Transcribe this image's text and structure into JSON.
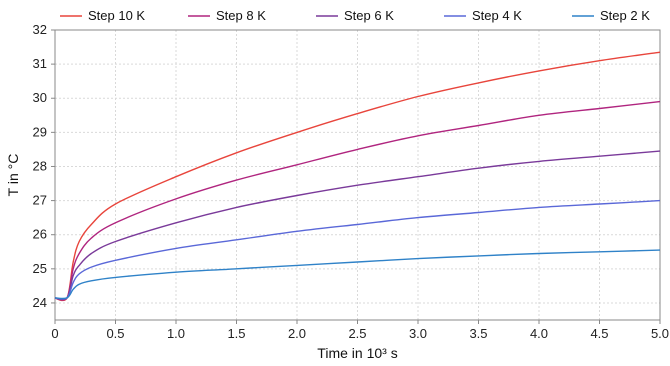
{
  "chart_data": {
    "type": "line",
    "title": "",
    "xlabel": "Time in 10³ s",
    "ylabel": "T in °C",
    "xlim": [
      0,
      5.0
    ],
    "ylim": [
      23.5,
      32
    ],
    "xticks": [
      "0",
      "0.5",
      "1.0",
      "1.5",
      "2.0",
      "2.5",
      "3.0",
      "3.5",
      "4.0",
      "4.5",
      "5.0"
    ],
    "yticks": [
      "24",
      "25",
      "26",
      "27",
      "28",
      "29",
      "30",
      "31",
      "32"
    ],
    "grid": true,
    "legend_position": "top",
    "x": [
      0,
      0.1,
      0.15,
      0.2,
      0.3,
      0.5,
      1.0,
      1.5,
      2.0,
      2.5,
      3.0,
      3.5,
      4.0,
      4.5,
      5.0
    ],
    "series": [
      {
        "name": "Step 10 K",
        "color": "#e8453c",
        "values": [
          24.15,
          24.15,
          25.2,
          25.8,
          26.3,
          26.9,
          27.7,
          28.4,
          29.0,
          29.55,
          30.05,
          30.45,
          30.8,
          31.1,
          31.35
        ]
      },
      {
        "name": "Step 8 K",
        "color": "#b0257f",
        "values": [
          24.15,
          24.15,
          25.0,
          25.45,
          25.9,
          26.35,
          27.05,
          27.6,
          28.05,
          28.5,
          28.9,
          29.2,
          29.5,
          29.7,
          29.9
        ]
      },
      {
        "name": "Step 6 K",
        "color": "#7a3a9a",
        "values": [
          24.15,
          24.15,
          24.8,
          25.1,
          25.45,
          25.8,
          26.35,
          26.8,
          27.15,
          27.45,
          27.7,
          27.95,
          28.15,
          28.3,
          28.45
        ]
      },
      {
        "name": "Step 4 K",
        "color": "#5a68d8",
        "values": [
          24.15,
          24.15,
          24.6,
          24.85,
          25.05,
          25.25,
          25.6,
          25.85,
          26.1,
          26.3,
          26.5,
          26.65,
          26.8,
          26.9,
          27.0
        ]
      },
      {
        "name": "Step 2 K",
        "color": "#2f82c8",
        "values": [
          24.15,
          24.15,
          24.4,
          24.55,
          24.65,
          24.75,
          24.9,
          25.0,
          25.1,
          25.2,
          25.3,
          25.38,
          25.45,
          25.5,
          25.55
        ]
      }
    ]
  }
}
